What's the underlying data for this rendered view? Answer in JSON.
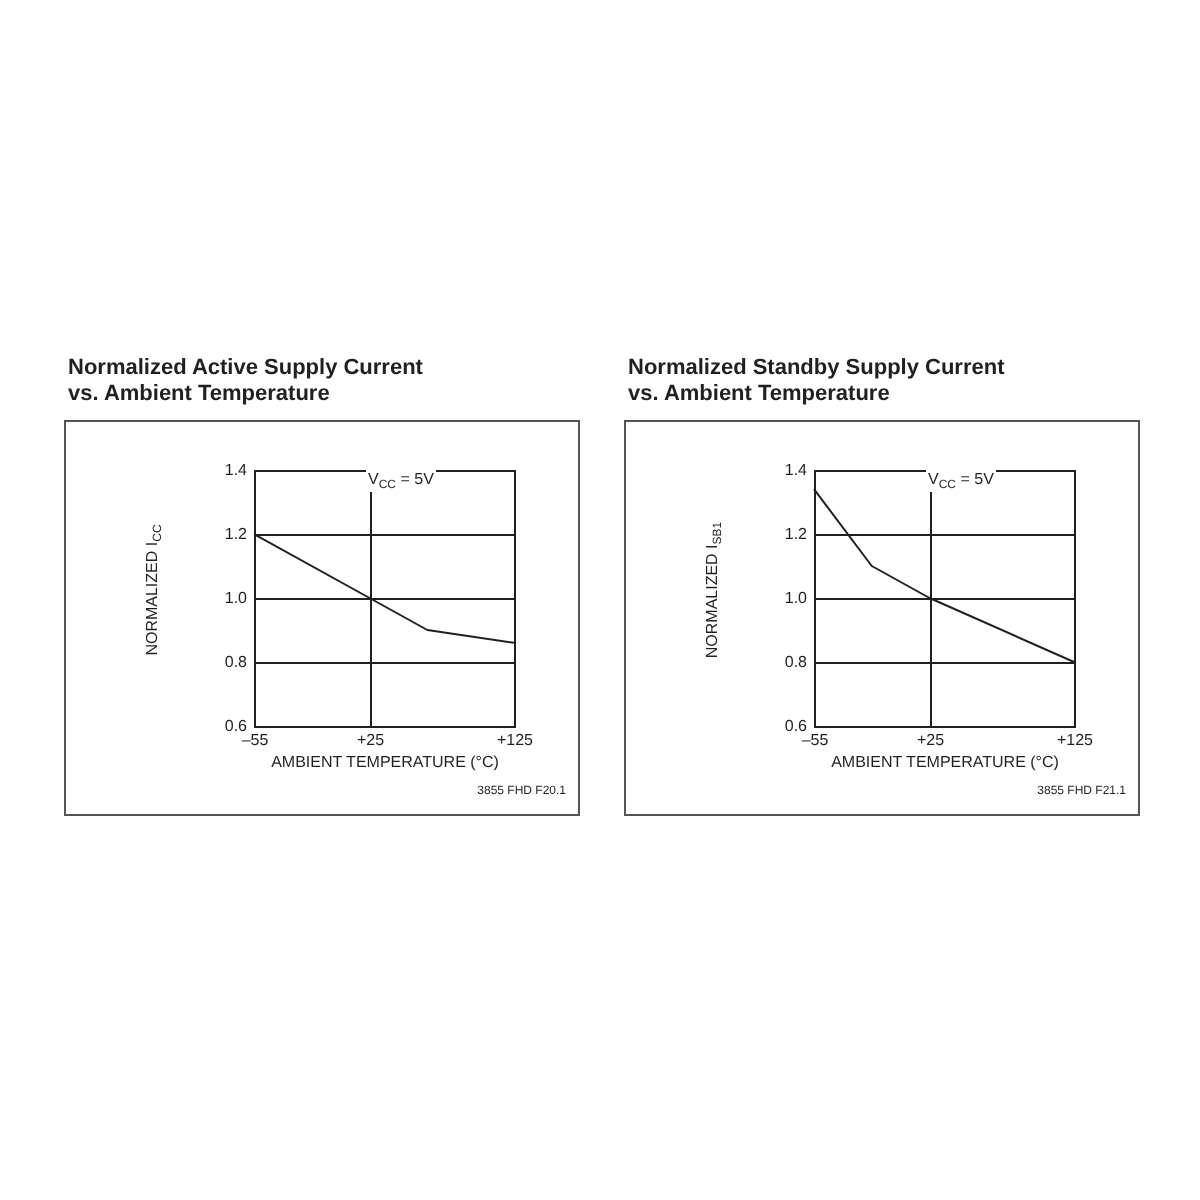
{
  "chart_data": [
    {
      "type": "line",
      "title": "Normalized Active Supply Current\nvs. Ambient Temperature",
      "xlabel": "AMBIENT TEMPERATURE (°C)",
      "ylabel": "NORMALIZED I$_{CC}$",
      "annotations": [
        "V$_{CC}$ = 5V",
        "3855 FHD F20.1"
      ],
      "x": [
        -55,
        25,
        65,
        125
      ],
      "series": [
        {
          "color": "#231f20",
          "values": [
            1.2,
            1.0,
            0.9,
            0.86
          ]
        }
      ],
      "xlim": [
        -55,
        125
      ],
      "xticks": [
        {
          "value": -55,
          "label": "–55"
        },
        {
          "value": 25,
          "label": "+25"
        },
        {
          "value": 125,
          "label": "+125"
        }
      ],
      "ylim": [
        0.6,
        1.4
      ],
      "yticks": [
        {
          "value": 0.6,
          "label": "0.6"
        },
        {
          "value": 0.8,
          "label": "0.8"
        },
        {
          "value": 1.0,
          "label": "1.0"
        },
        {
          "value": 1.2,
          "label": "1.2"
        },
        {
          "value": 1.4,
          "label": "1.4"
        }
      ],
      "grid": true,
      "line_style": "solid"
    },
    {
      "type": "line",
      "title": "Normalized Standby Supply Current\nvs. Ambient Temperature",
      "xlabel": "AMBIENT TEMPERATURE (°C)",
      "ylabel": "NORMALIZED I$_{SB1}$",
      "annotations": [
        "V$_{CC}$ = 5V",
        "3855 FHD F21.1"
      ],
      "x": [
        -55,
        -15,
        25,
        125
      ],
      "series": [
        {
          "color": "#231f20",
          "values": [
            1.34,
            1.1,
            1.0,
            0.8
          ]
        }
      ],
      "xlim": [
        -55,
        125
      ],
      "xticks": [
        {
          "value": -55,
          "label": "–55"
        },
        {
          "value": 25,
          "label": "+25"
        },
        {
          "value": 125,
          "label": "+125"
        }
      ],
      "ylim": [
        0.6,
        1.4
      ],
      "yticks": [
        {
          "value": 0.6,
          "label": "0.6"
        },
        {
          "value": 0.8,
          "label": "0.8"
        },
        {
          "value": 1.0,
          "label": "1.0"
        },
        {
          "value": 1.2,
          "label": "1.2"
        },
        {
          "value": 1.4,
          "label": "1.4"
        }
      ],
      "grid": true,
      "line_style": "solid"
    }
  ]
}
